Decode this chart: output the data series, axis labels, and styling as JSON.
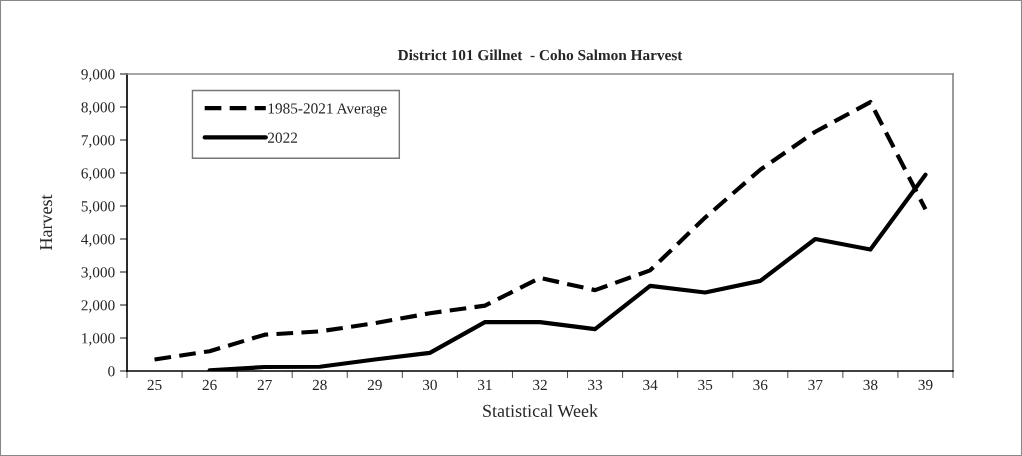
{
  "chart_data": {
    "type": "line",
    "title": "District 101 Gillnet  - Coho Salmon Harvest",
    "xlabel": "Statistical Week",
    "ylabel": "Harvest",
    "categories": [
      "25",
      "26",
      "27",
      "28",
      "29",
      "30",
      "31",
      "32",
      "33",
      "34",
      "35",
      "36",
      "37",
      "38",
      "39"
    ],
    "series": [
      {
        "name": "1985-2021 Average",
        "color": "#000000",
        "line_style": "dashed",
        "values": [
          350,
          600,
          1100,
          1200,
          1450,
          1750,
          1980,
          2820,
          2450,
          3050,
          4650,
          6100,
          7250,
          8150,
          4900
        ]
      },
      {
        "name": "2022",
        "color": "#000000",
        "line_style": "solid",
        "values": [
          null,
          20,
          120,
          130,
          350,
          550,
          1480,
          1480,
          1270,
          2580,
          2380,
          2730,
          4000,
          3680,
          5950
        ]
      }
    ],
    "ylim": [
      0,
      9000
    ],
    "yticks": [
      {
        "value": 0,
        "label": "0"
      },
      {
        "value": 1000,
        "label": "1,000"
      },
      {
        "value": 2000,
        "label": "2,000"
      },
      {
        "value": 3000,
        "label": "3,000"
      },
      {
        "value": 4000,
        "label": "4,000"
      },
      {
        "value": 5000,
        "label": "5,000"
      },
      {
        "value": 6000,
        "label": "6,000"
      },
      {
        "value": 7000,
        "label": "7,000"
      },
      {
        "value": 8000,
        "label": "8,000"
      },
      {
        "value": 9000,
        "label": "9,000"
      }
    ],
    "grid": false,
    "legend": "top left",
    "marker": "none"
  }
}
